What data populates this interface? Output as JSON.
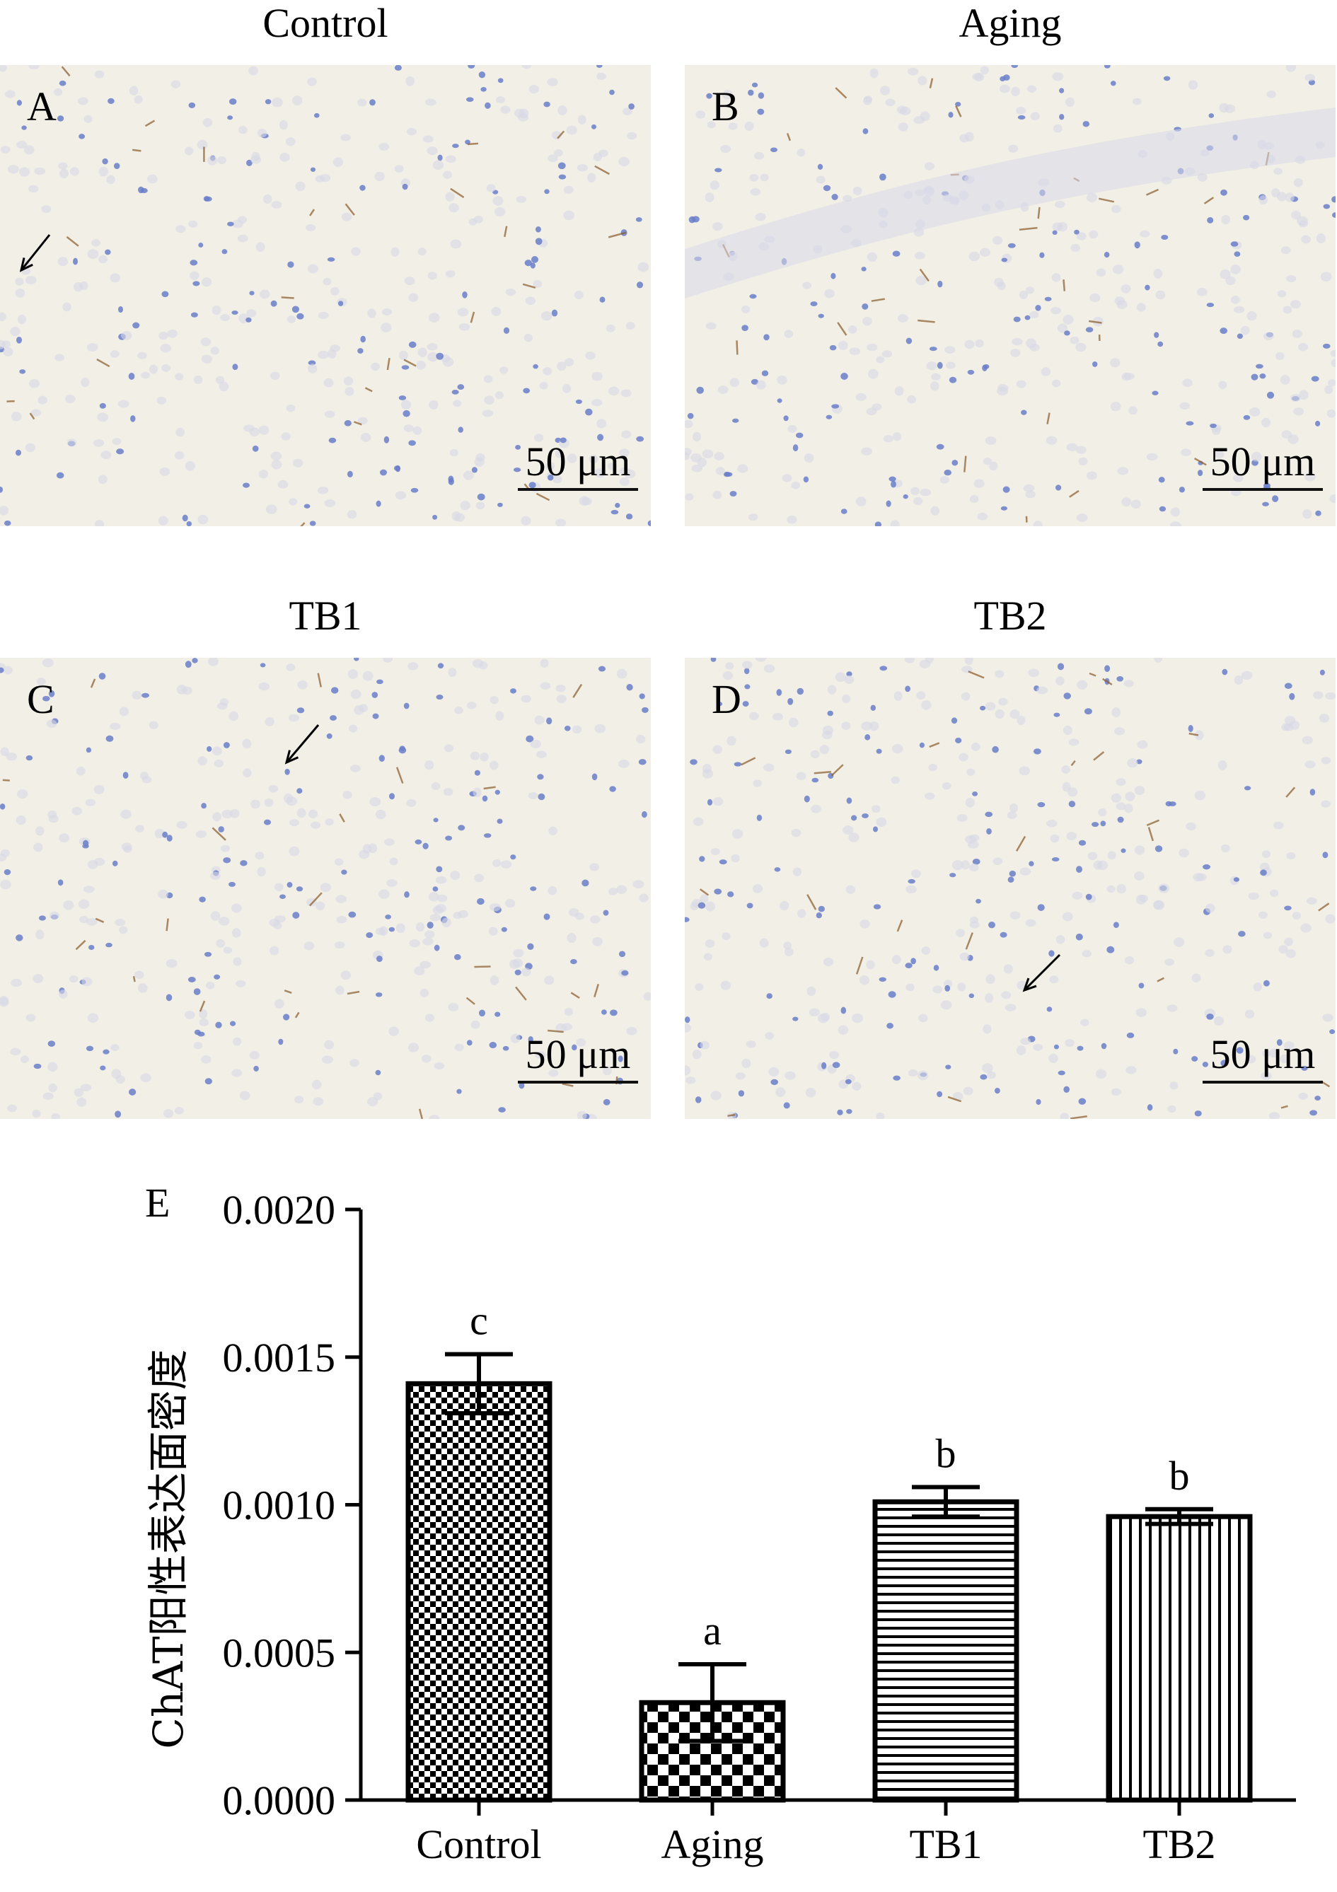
{
  "panels": [
    {
      "id": "A",
      "group": "Control",
      "scale_label": "50 μm",
      "arrow": true
    },
    {
      "id": "B",
      "group": "Aging",
      "scale_label": "50 μm",
      "arrow": false
    },
    {
      "id": "C",
      "group": "TB1",
      "scale_label": "50 μm",
      "arrow": true
    },
    {
      "id": "D",
      "group": "TB2",
      "scale_label": "50 μm",
      "arrow": true
    }
  ],
  "chart_data": {
    "type": "bar",
    "panel_label": "E",
    "categories": [
      "Control",
      "Aging",
      "TB1",
      "TB2"
    ],
    "values": [
      0.00141,
      0.00033,
      0.00101,
      0.00096
    ],
    "errors": [
      0.0001,
      0.00013,
      5e-05,
      2.5e-05
    ],
    "significance": [
      "c",
      "a",
      "b",
      "b"
    ],
    "ylabel": "ChAT阳性表达面密度",
    "ylim": [
      0,
      0.002
    ],
    "yticks": [
      "0.0000",
      "0.0005",
      "0.0010",
      "0.0015",
      "0.0020"
    ],
    "patterns": [
      "checker-fine",
      "checker-coarse",
      "horizontal-stripes",
      "vertical-stripes"
    ],
    "grid": false
  },
  "colors": {
    "tissue_bg": "#f2f0e6",
    "nuclei": "#6a7ec8",
    "stain": "#8a5a2a"
  }
}
